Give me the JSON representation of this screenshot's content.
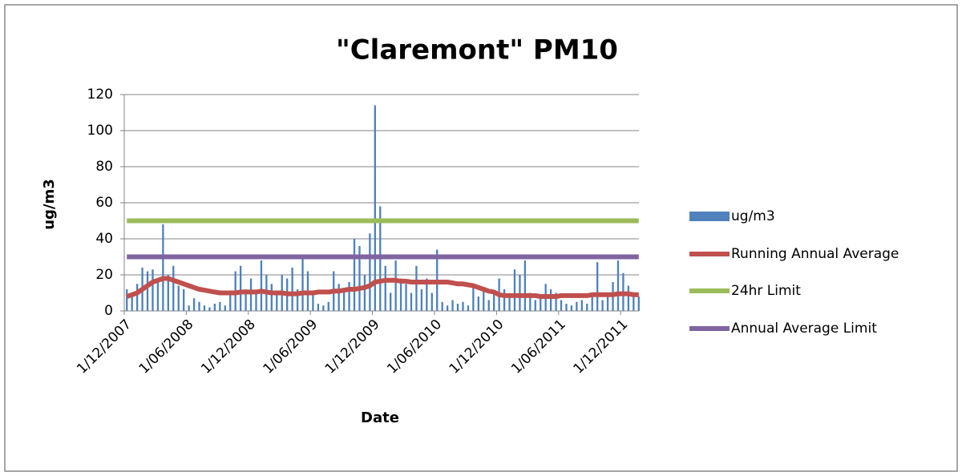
{
  "chart_data": {
    "type": "bar",
    "title": "\"Claremont\" PM10",
    "x_label": "Date",
    "y_label": "ug/m3",
    "categories": [
      "1/12/2007",
      null,
      null,
      null,
      null,
      null,
      null,
      null,
      null,
      null,
      null,
      null,
      "1/06/2008",
      null,
      null,
      null,
      null,
      null,
      null,
      null,
      null,
      null,
      null,
      null,
      "1/12/2008",
      null,
      null,
      null,
      null,
      null,
      null,
      null,
      null,
      null,
      null,
      null,
      "1/06/2009",
      null,
      null,
      null,
      null,
      null,
      null,
      null,
      null,
      null,
      null,
      null,
      "1/12/2009",
      null,
      null,
      null,
      null,
      null,
      null,
      null,
      null,
      null,
      null,
      null,
      "1/06/2010",
      null,
      null,
      null,
      null,
      null,
      null,
      null,
      null,
      null,
      null,
      null,
      "1/12/2010",
      null,
      null,
      null,
      null,
      null,
      null,
      null,
      null,
      null,
      null,
      null,
      "1/06/2011",
      null,
      null,
      null,
      null,
      null,
      null,
      null,
      null,
      null,
      null,
      null,
      "1/12/2011",
      null,
      null,
      null
    ],
    "ylim": [
      0,
      120
    ],
    "yticks": [
      0,
      20,
      40,
      60,
      80,
      100,
      120
    ],
    "grid": true,
    "legend": "right",
    "series": [
      {
        "name": "ug/m3",
        "type": "bar",
        "color": "#4f81bd",
        "values": [
          12,
          8,
          15,
          24,
          22,
          23,
          18,
          48,
          20,
          25,
          14,
          12,
          3,
          7,
          5,
          3,
          2,
          4,
          5,
          3,
          10,
          22,
          25,
          12,
          18,
          10,
          28,
          20,
          15,
          10,
          20,
          18,
          24,
          12,
          29,
          22,
          10,
          4,
          3,
          5,
          22,
          15,
          12,
          16,
          40,
          36,
          20,
          43,
          114,
          58,
          25,
          10,
          28,
          18,
          15,
          10,
          25,
          12,
          18,
          10,
          34,
          5,
          3,
          6,
          4,
          5,
          3,
          15,
          8,
          12,
          6,
          10,
          18,
          12,
          8,
          23,
          20,
          28,
          10,
          6,
          8,
          15,
          12,
          10,
          6,
          4,
          3,
          5,
          6,
          4,
          8,
          27,
          6,
          8,
          16,
          28,
          21,
          14,
          10,
          8
        ]
      },
      {
        "name": "Running Annual Average",
        "type": "line",
        "color": "#c0504d",
        "values": [
          8,
          9,
          10,
          12,
          14,
          16,
          17,
          18,
          18,
          17,
          16,
          15,
          14,
          13,
          12,
          11.5,
          11,
          10.5,
          10,
          10,
          10,
          10,
          10.5,
          10.5,
          10.5,
          10.5,
          11,
          10.5,
          10,
          10,
          10,
          9.5,
          9.5,
          9.5,
          10,
          10,
          10,
          10.5,
          10.5,
          10.5,
          11,
          11,
          11.5,
          12,
          12,
          12.5,
          13,
          14,
          16,
          16.5,
          17,
          17,
          17,
          16.5,
          16.5,
          16,
          16,
          16,
          16,
          16,
          16,
          16,
          16,
          15.5,
          15,
          15,
          14.5,
          14,
          13,
          12,
          11,
          10.5,
          9,
          8.5,
          8.5,
          8.5,
          8.5,
          8.5,
          8.5,
          8.5,
          8,
          8,
          8,
          8,
          8.5,
          8.5,
          8.5,
          8.5,
          8.5,
          8.5,
          9,
          9,
          9,
          9,
          9,
          9.5,
          9.5,
          9.5,
          9,
          9
        ]
      },
      {
        "name": "24hr Limit",
        "type": "line",
        "color": "#9bbb59",
        "values": [
          50,
          50,
          50,
          50,
          50,
          50,
          50,
          50,
          50,
          50,
          50,
          50,
          50,
          50,
          50,
          50,
          50,
          50,
          50,
          50,
          50,
          50,
          50,
          50,
          50,
          50,
          50,
          50,
          50,
          50,
          50,
          50,
          50,
          50,
          50,
          50,
          50,
          50,
          50,
          50,
          50,
          50,
          50,
          50,
          50,
          50,
          50,
          50,
          50,
          50,
          50,
          50,
          50,
          50,
          50,
          50,
          50,
          50,
          50,
          50,
          50,
          50,
          50,
          50,
          50,
          50,
          50,
          50,
          50,
          50,
          50,
          50,
          50,
          50,
          50,
          50,
          50,
          50,
          50,
          50,
          50,
          50,
          50,
          50,
          50,
          50,
          50,
          50,
          50,
          50,
          50,
          50,
          50,
          50,
          50,
          50,
          50,
          50,
          50,
          50
        ]
      },
      {
        "name": "Annual Average Limit",
        "type": "line",
        "color": "#8064a2",
        "values": [
          30,
          30,
          30,
          30,
          30,
          30,
          30,
          30,
          30,
          30,
          30,
          30,
          30,
          30,
          30,
          30,
          30,
          30,
          30,
          30,
          30,
          30,
          30,
          30,
          30,
          30,
          30,
          30,
          30,
          30,
          30,
          30,
          30,
          30,
          30,
          30,
          30,
          30,
          30,
          30,
          30,
          30,
          30,
          30,
          30,
          30,
          30,
          30,
          30,
          30,
          30,
          30,
          30,
          30,
          30,
          30,
          30,
          30,
          30,
          30,
          30,
          30,
          30,
          30,
          30,
          30,
          30,
          30,
          30,
          30,
          30,
          30,
          30,
          30,
          30,
          30,
          30,
          30,
          30,
          30,
          30,
          30,
          30,
          30,
          30,
          30,
          30,
          30,
          30,
          30,
          30,
          30,
          30,
          30,
          30,
          30,
          30,
          30,
          30,
          30
        ]
      }
    ]
  }
}
